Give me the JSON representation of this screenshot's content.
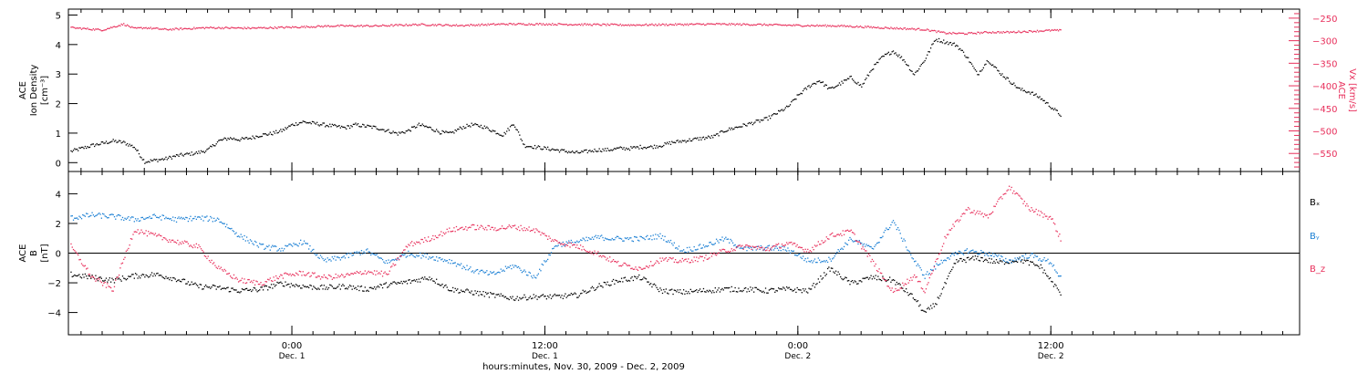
{
  "chart_data": {
    "type": "scatter",
    "xlabel": "hours:minutes, Nov. 30, 2009 - Dec. 2, 2009",
    "x_unit": "hours",
    "x_ticks": [
      {
        "hours": 24,
        "time": "0:00",
        "date": "Dec. 1"
      },
      {
        "hours": 36,
        "time": "12:00",
        "date": "Dec. 1"
      },
      {
        "hours": 48,
        "time": "0:00",
        "date": "Dec. 2"
      },
      {
        "hours": 60,
        "time": "12:00",
        "date": "Dec. 2"
      }
    ],
    "xlim": [
      13.4,
      71.8
    ],
    "panels": [
      {
        "name": "density",
        "ylabel_lines": [
          "ACE",
          "Ion Density",
          "[cm⁻³]"
        ],
        "ylim": [
          -0.3,
          5.2
        ],
        "y_ticks": [
          0,
          1,
          2,
          3,
          4,
          5
        ],
        "right_axis": {
          "label_lines": [
            "ACE",
            "Vx [km/s]"
          ],
          "ylim": [
            -590,
            -230
          ],
          "ticks": [
            -250,
            -300,
            -350,
            -400,
            -450,
            -500,
            -550
          ],
          "color": "#e8305c"
        },
        "series": [
          {
            "name": "density",
            "color": "#000000",
            "x": [
              13.5,
              14.5,
              15.5,
              16,
              16.5,
              17,
              17.5,
              18,
              18.5,
              19,
              19.5,
              20,
              20.5,
              21,
              21.5,
              22,
              22.5,
              23,
              23.5,
              24,
              24.5,
              25,
              25.5,
              26,
              26.5,
              27,
              27.5,
              28,
              28.5,
              29,
              29.5,
              30,
              30.5,
              31,
              31.5,
              32,
              32.5,
              33,
              33.5,
              34,
              34.5,
              35,
              35.5,
              36,
              36.5,
              37,
              37.5,
              38,
              38.5,
              39,
              39.5,
              40,
              40.5,
              41,
              41.5,
              42,
              42.5,
              43,
              43.5,
              44,
              44.5,
              45,
              45.5,
              46,
              46.5,
              47,
              47.5,
              48,
              48.5,
              49,
              49.5,
              50,
              50.5,
              51,
              51.5,
              52,
              52.5,
              53,
              53.5,
              54,
              54.5,
              55,
              55.5,
              56,
              56.5,
              57,
              57.5,
              58,
              58.5,
              59,
              59.5,
              60,
              60.5
            ],
            "values": [
              0.4,
              0.6,
              0.75,
              0.7,
              0.55,
              0.05,
              0.1,
              0.15,
              0.25,
              0.3,
              0.35,
              0.45,
              0.75,
              0.85,
              0.8,
              0.85,
              0.95,
              1.0,
              1.1,
              1.3,
              1.4,
              1.35,
              1.3,
              1.25,
              1.2,
              1.3,
              1.25,
              1.2,
              1.1,
              1.0,
              1.1,
              1.3,
              1.2,
              1.05,
              1.0,
              1.2,
              1.3,
              1.25,
              1.1,
              0.95,
              1.35,
              0.6,
              0.55,
              0.5,
              0.45,
              0.4,
              0.35,
              0.4,
              0.45,
              0.45,
              0.5,
              0.5,
              0.55,
              0.55,
              0.6,
              0.7,
              0.75,
              0.8,
              0.85,
              0.9,
              1.1,
              1.2,
              1.3,
              1.4,
              1.5,
              1.7,
              1.9,
              2.3,
              2.6,
              2.8,
              2.5,
              2.7,
              2.9,
              2.6,
              3.2,
              3.6,
              3.8,
              3.5,
              3.0,
              3.5,
              4.2,
              4.1,
              4.0,
              3.6,
              3.0,
              3.5,
              3.1,
              2.8,
              2.5,
              2.4,
              2.2,
              1.9,
              1.6
            ]
          },
          {
            "name": "Vx",
            "color": "#e8305c",
            "axis": "right",
            "x": [
              13.5,
              15,
              16,
              16.5,
              17,
              18,
              19,
              20,
              22,
              24,
              26,
              28,
              30,
              32,
              34,
              36,
              38,
              40,
              42,
              44,
              46,
              48,
              50,
              51,
              52,
              53,
              54,
              54.5,
              55,
              56,
              57,
              58,
              59,
              60,
              60.5
            ],
            "values": [
              -270,
              -275,
              -262,
              -272,
              -270,
              -274,
              -272,
              -270,
              -271,
              -269,
              -266,
              -266,
              -263,
              -265,
              -262,
              -262,
              -263,
              -264,
              -263,
              -262,
              -263,
              -265,
              -266,
              -268,
              -270,
              -272,
              -274,
              -278,
              -282,
              -283,
              -280,
              -280,
              -278,
              -276,
              -276
            ]
          }
        ]
      },
      {
        "name": "magnetic field",
        "ylabel_lines": [
          "ACE",
          "B",
          "[nT]"
        ],
        "ylim": [
          -5.5,
          5.5
        ],
        "y_ticks": [
          -4,
          -2,
          0,
          2,
          4
        ],
        "legend_position": "right",
        "series": [
          {
            "name": "Bₓ",
            "color": "#000000",
            "x": [
              13.5,
              14.5,
              15.5,
              16.5,
              17.5,
              18.5,
              19.5,
              20.5,
              21.5,
              22.5,
              23.5,
              24.5,
              25.5,
              26.5,
              27.5,
              28.5,
              29.5,
              30.5,
              31.5,
              32.5,
              33.5,
              34.5,
              35.5,
              36.5,
              37.5,
              38.5,
              39.5,
              40.5,
              41.5,
              42.5,
              43.5,
              44.5,
              45.5,
              46.5,
              47.5,
              48.5,
              49.5,
              50.5,
              51.5,
              52.5,
              53.5,
              54,
              54.5,
              55.5,
              56.5,
              57.5,
              58.5,
              59.5,
              60.5
            ],
            "values": [
              -1.4,
              -1.6,
              -1.8,
              -1.5,
              -1.4,
              -1.7,
              -2.2,
              -2.3,
              -2.5,
              -2.4,
              -2.0,
              -2.2,
              -2.3,
              -2.2,
              -2.4,
              -2.1,
              -1.9,
              -1.6,
              -2.4,
              -2.6,
              -2.8,
              -3.0,
              -2.9,
              -2.9,
              -2.8,
              -2.2,
              -1.8,
              -1.6,
              -2.5,
              -2.6,
              -2.5,
              -2.4,
              -2.4,
              -2.5,
              -2.4,
              -2.5,
              -1.0,
              -2.0,
              -1.6,
              -1.8,
              -3.0,
              -4.0,
              -3.4,
              -0.5,
              -0.3,
              -0.6,
              -0.4,
              -0.9,
              -2.8
            ]
          },
          {
            "name": "Bᵧ",
            "color": "#1a7fd4",
            "x": [
              13.5,
              14.5,
              15.5,
              16.5,
              17.5,
              18.5,
              19.5,
              20.5,
              21.5,
              22.5,
              23.5,
              24.5,
              25.5,
              26.5,
              27.5,
              28.5,
              29.5,
              30.5,
              31.5,
              32.5,
              33.5,
              34.5,
              35.5,
              36.5,
              37.5,
              38.5,
              39.5,
              40.5,
              41.5,
              42.5,
              43.5,
              44.5,
              45.5,
              46.5,
              47.5,
              48.5,
              49.5,
              50.5,
              51.5,
              52.5,
              53.5,
              54,
              55,
              56,
              57,
              58,
              59,
              60,
              60.5
            ],
            "values": [
              2.4,
              2.6,
              2.5,
              2.3,
              2.5,
              2.3,
              2.4,
              2.3,
              1.2,
              0.5,
              0.3,
              0.8,
              -0.5,
              -0.2,
              0.2,
              -0.6,
              0.0,
              -0.2,
              -0.5,
              -1.1,
              -1.4,
              -0.8,
              -1.6,
              0.6,
              0.8,
              1.1,
              1.0,
              1.0,
              1.2,
              0.2,
              0.5,
              1.0,
              0.3,
              0.4,
              0.3,
              -0.5,
              -0.4,
              1.0,
              0.3,
              2.2,
              -0.5,
              -1.5,
              -0.3,
              0.2,
              0.0,
              -0.5,
              -0.1,
              -0.6,
              -1.8
            ]
          },
          {
            "name": "B_z",
            "color": "#e8305c",
            "x": [
              13.5,
              14.5,
              15.5,
              16.5,
              17.5,
              18.5,
              19.5,
              20.5,
              21.5,
              22.5,
              23.5,
              24.5,
              25.5,
              26.5,
              27.5,
              28.5,
              29.5,
              30.5,
              31.5,
              32.5,
              33.5,
              34.5,
              35.5,
              36.5,
              37.5,
              38.5,
              39.5,
              40.5,
              41.5,
              42.5,
              43.5,
              44.5,
              45.5,
              46.5,
              47.5,
              48.5,
              49.5,
              50.5,
              51.5,
              52.5,
              53.5,
              54,
              55,
              56,
              57,
              58,
              59,
              60,
              60.5
            ],
            "values": [
              0.5,
              -1.6,
              -2.4,
              1.6,
              1.2,
              0.8,
              0.5,
              -1.0,
              -1.8,
              -2.0,
              -1.5,
              -1.3,
              -1.6,
              -1.5,
              -1.2,
              -1.4,
              0.6,
              1.0,
              1.6,
              1.8,
              1.7,
              1.8,
              1.6,
              0.8,
              0.5,
              0.0,
              -0.7,
              -1.0,
              -0.4,
              -0.5,
              -0.3,
              0.2,
              0.5,
              0.3,
              0.7,
              0.2,
              1.2,
              1.5,
              -0.5,
              -2.6,
              -1.5,
              -2.5,
              1.2,
              3.0,
              2.5,
              4.5,
              3.0,
              2.4,
              0.8
            ]
          }
        ]
      }
    ]
  }
}
